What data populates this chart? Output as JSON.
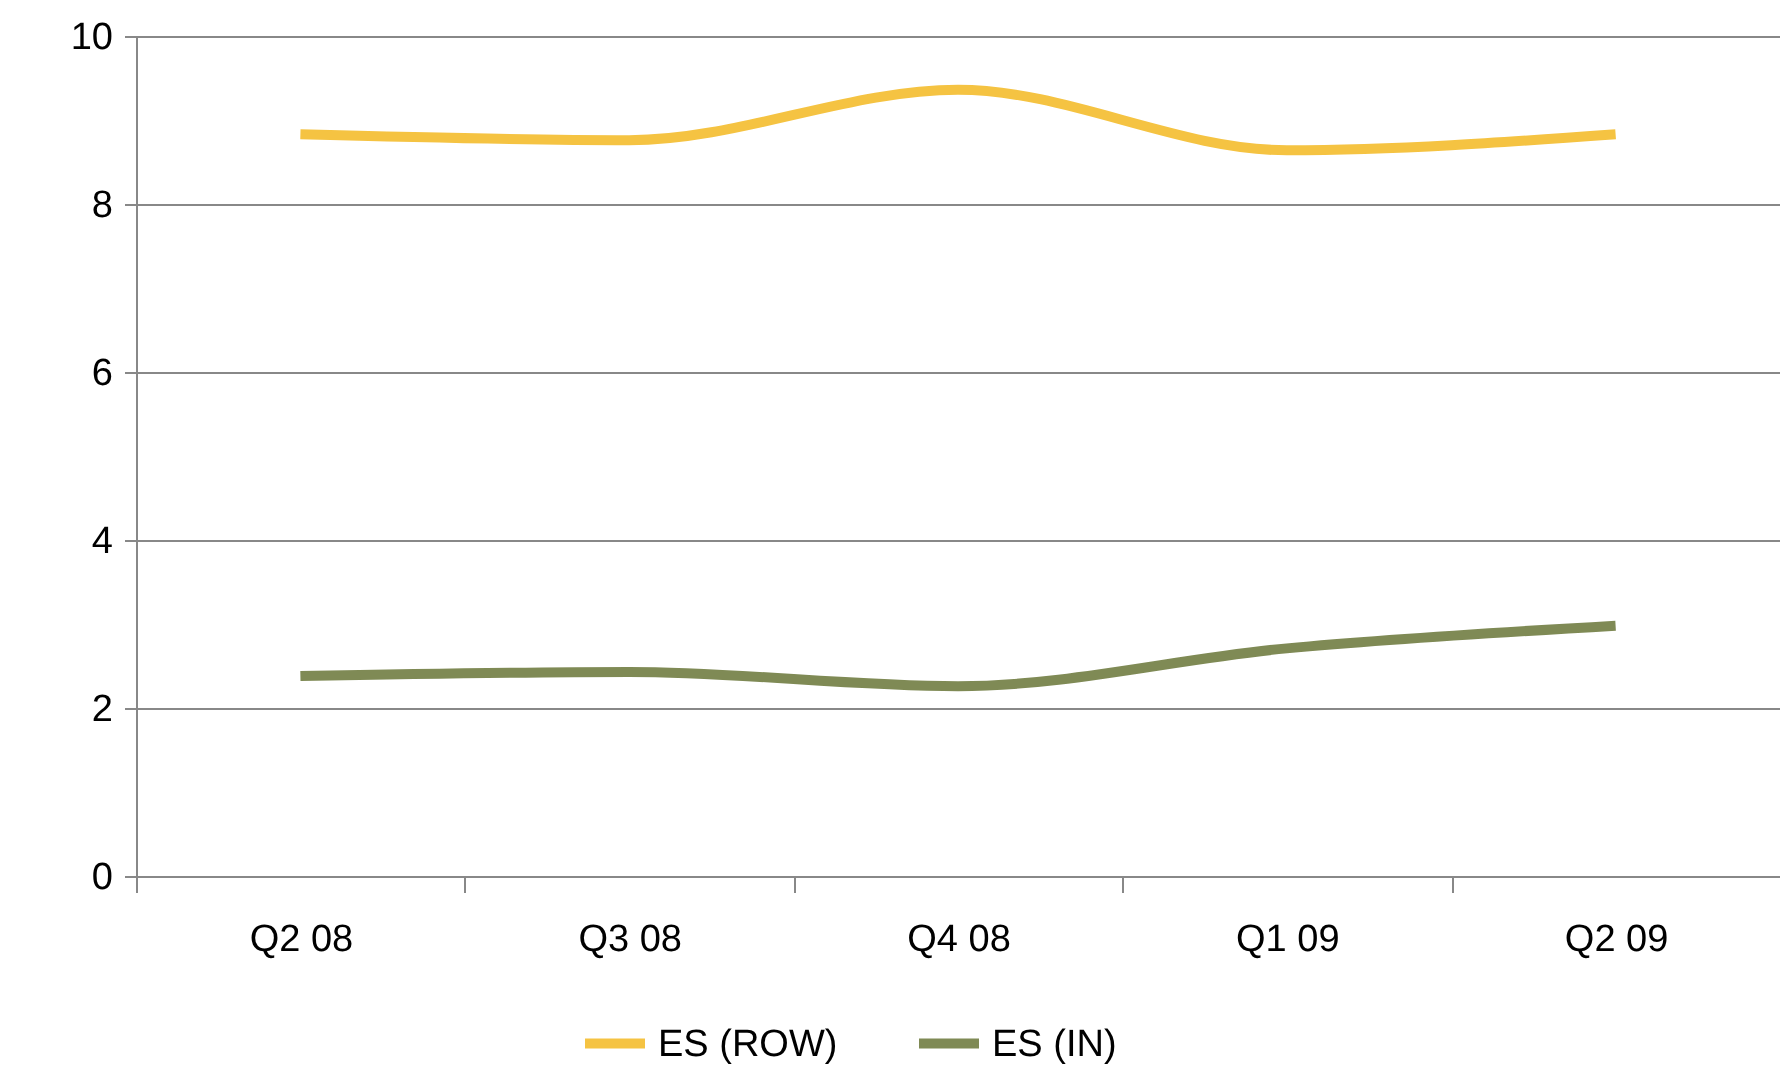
{
  "chart_data": {
    "type": "line",
    "categories": [
      "Q2 08",
      "Q3 08",
      "Q4 08",
      "Q1 09",
      "Q2 09"
    ],
    "series": [
      {
        "name": "ES (ROW)",
        "color": "#f5c342",
        "values": [
          8.83,
          8.76,
          9.36,
          8.64,
          8.83
        ]
      },
      {
        "name": "ES (IN)",
        "color": "#7f8a55",
        "values": [
          2.38,
          2.43,
          2.26,
          2.71,
          2.98
        ]
      }
    ],
    "ylim": [
      0,
      10
    ],
    "yticks": [
      0,
      2,
      4,
      6,
      8,
      10
    ],
    "grid": "y",
    "legend": "bottom",
    "marker": "none",
    "line_style": "solid"
  }
}
